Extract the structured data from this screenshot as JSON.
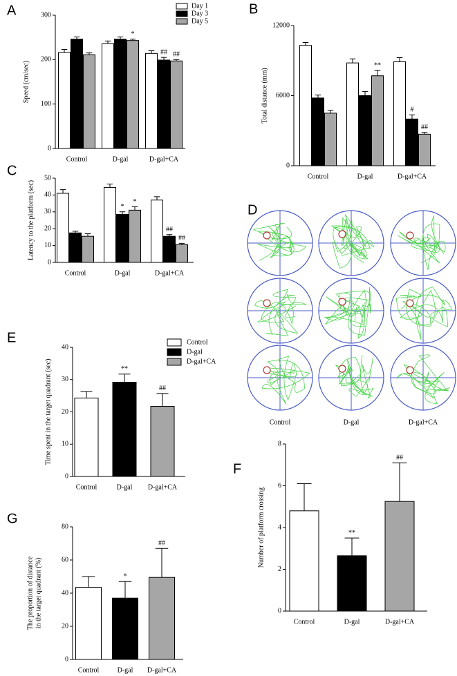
{
  "chart_data": [
    {
      "panel": "A",
      "type": "bar",
      "y_label": [
        "Speed (cm/sec)"
      ],
      "categories": [
        "Control",
        "D-gal",
        "D-gal+CA"
      ],
      "series": [
        {
          "name": "Day 1",
          "color": "#ffffff",
          "values": [
            216,
            236,
            214
          ],
          "errors": [
            7,
            6,
            6
          ],
          "annotations": [
            null,
            null,
            null
          ]
        },
        {
          "name": "Day 3",
          "color": "#000000",
          "values": [
            246,
            246,
            199
          ],
          "errors": [
            5,
            5,
            6
          ],
          "annotations": [
            null,
            null,
            "##"
          ]
        },
        {
          "name": "Day 5",
          "color": "#a6a6a6",
          "values": [
            211,
            243,
            197
          ],
          "errors": [
            4,
            3,
            3
          ],
          "annotations": [
            null,
            "*",
            "##"
          ]
        }
      ],
      "ylim": [
        0,
        300
      ],
      "yticks": [
        0,
        100,
        200,
        300
      ],
      "legend": "upper right"
    },
    {
      "panel": "B",
      "type": "bar",
      "y_label": [
        "Total distance (mm)"
      ],
      "categories": [
        "Control",
        "D-gal",
        "D-gal+CA"
      ],
      "series": [
        {
          "name": "Day 1",
          "color": "#ffffff",
          "values": [
            10300,
            8800,
            8900
          ],
          "errors": [
            250,
            350,
            350
          ],
          "annotations": [
            null,
            null,
            null
          ]
        },
        {
          "name": "Day 3",
          "color": "#000000",
          "values": [
            5800,
            6000,
            4000
          ],
          "errors": [
            250,
            350,
            350
          ],
          "annotations": [
            null,
            null,
            "#"
          ]
        },
        {
          "name": "Day 5",
          "color": "#a6a6a6",
          "values": [
            4500,
            7700,
            2700
          ],
          "errors": [
            250,
            450,
            150
          ],
          "annotations": [
            null,
            "**",
            "##"
          ]
        }
      ],
      "ylim": [
        0,
        12000
      ],
      "yticks": [
        0,
        6000,
        12000
      ]
    },
    {
      "panel": "C",
      "type": "bar",
      "y_label": [
        "Latency to the platform (sec)"
      ],
      "categories": [
        "Control",
        "D-gal",
        "D-gal+CA"
      ],
      "series": [
        {
          "name": "Day 1",
          "color": "#ffffff",
          "values": [
            41,
            44.5,
            37
          ],
          "errors": [
            2.2,
            2,
            2
          ],
          "annotations": [
            null,
            null,
            null
          ]
        },
        {
          "name": "Day 3",
          "color": "#000000",
          "values": [
            17.5,
            28.5,
            15.5
          ],
          "errors": [
            1,
            1.5,
            1
          ],
          "annotations": [
            null,
            "*",
            "##"
          ]
        },
        {
          "name": "Day 5",
          "color": "#a6a6a6",
          "values": [
            15.5,
            31,
            10.5
          ],
          "errors": [
            1.5,
            2,
            0.8
          ],
          "annotations": [
            null,
            "*",
            "##"
          ]
        }
      ],
      "ylim": [
        0,
        50
      ],
      "yticks": [
        0,
        10,
        20,
        30,
        40,
        50
      ]
    },
    {
      "panel": "E",
      "type": "bar",
      "y_label": [
        "Time spent in the target quadrant (sec)"
      ],
      "categories": [
        "Control",
        "D-gal",
        "D-gal+CA"
      ],
      "values": [
        24.3,
        29.2,
        21.7
      ],
      "errors": [
        2,
        2.5,
        4
      ],
      "annotations": [
        null,
        "**",
        "##"
      ],
      "colors": [
        "#ffffff",
        "#000000",
        "#a6a6a6"
      ],
      "ylim": [
        0,
        40
      ],
      "yticks": [
        0,
        10,
        20,
        30,
        40
      ],
      "legend": "upper right"
    },
    {
      "panel": "F",
      "type": "bar",
      "y_label": [
        "Number of platform crossing"
      ],
      "categories": [
        "Control",
        "D-gal",
        "D-gal+CA"
      ],
      "values": [
        4.8,
        2.65,
        5.25
      ],
      "errors": [
        1.3,
        0.85,
        1.85
      ],
      "annotations": [
        null,
        "**",
        "##"
      ],
      "colors": [
        "#ffffff",
        "#000000",
        "#a6a6a6"
      ],
      "ylim": [
        0,
        8
      ],
      "yticks": [
        0,
        2,
        4,
        6,
        8
      ]
    },
    {
      "panel": "G",
      "type": "bar",
      "y_label": [
        "The proportion of distance",
        "in the target quadrant (%)"
      ],
      "categories": [
        "Control",
        "D-gal",
        "D-gal+CA"
      ],
      "values": [
        43.5,
        37,
        49.5
      ],
      "errors": [
        6.5,
        10,
        17.5
      ],
      "annotations": [
        null,
        "*",
        "##"
      ],
      "colors": [
        "#ffffff",
        "#000000",
        "#a6a6a6"
      ],
      "ylim": [
        0,
        80
      ],
      "yticks": [
        0,
        20,
        40,
        60,
        80
      ]
    }
  ],
  "swim_paths": {
    "panel": "D",
    "columns": [
      "Control",
      "D-gal",
      "D-gal+CA"
    ]
  }
}
